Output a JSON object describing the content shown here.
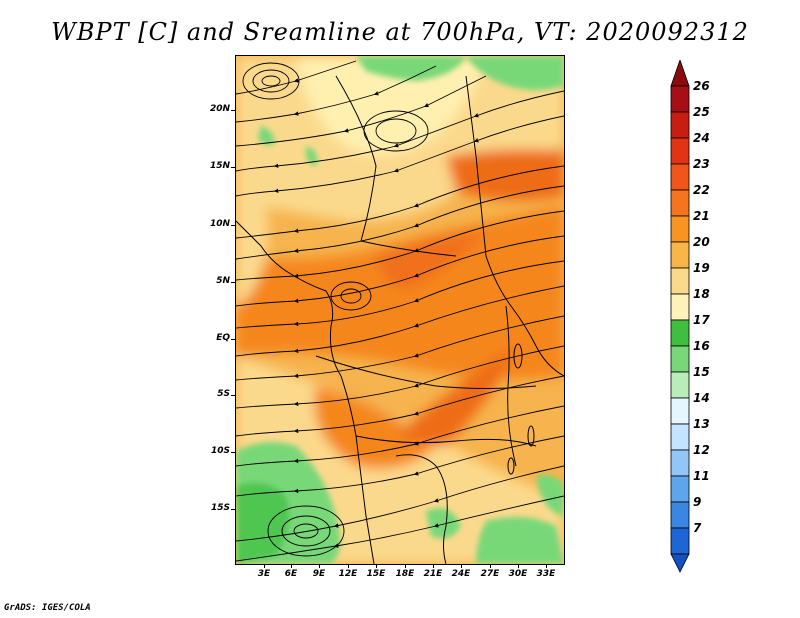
{
  "title": "WBPT [C] and Sreamline at 700hPa, VT: 2020092312",
  "credit": "GrADS: IGES/COLA",
  "map": {
    "variable": "Wet-bulb potential temperature",
    "level": "700hPa",
    "overlay": "streamlines",
    "lat_labels": [
      "20N",
      "15N",
      "10N",
      "5N",
      "EQ",
      "5S",
      "10S",
      "15S"
    ],
    "lon_labels": [
      "3E",
      "6E",
      "9E",
      "12E",
      "15E",
      "18E",
      "21E",
      "24E",
      "27E",
      "30E",
      "33E"
    ]
  },
  "colorbar": {
    "levels": [
      "26",
      "25",
      "24",
      "23",
      "22",
      "21",
      "20",
      "19",
      "18",
      "17",
      "16",
      "15",
      "14",
      "13",
      "12",
      "11",
      "9",
      "7"
    ],
    "colors": [
      "#a50f15",
      "#c81e12",
      "#e23314",
      "#f0551a",
      "#f5751e",
      "#f79422",
      "#f8b648",
      "#fbd98c",
      "#fff2b8",
      "#3fbf3f",
      "#78d878",
      "#b8ecb8",
      "#e6f6ff",
      "#c3e3ff",
      "#92c6f6",
      "#5ea6ec",
      "#3a86e2",
      "#1e66d6"
    ],
    "cap_top_color": "#8b0a10",
    "cap_bottom_color": "#1550c0"
  }
}
